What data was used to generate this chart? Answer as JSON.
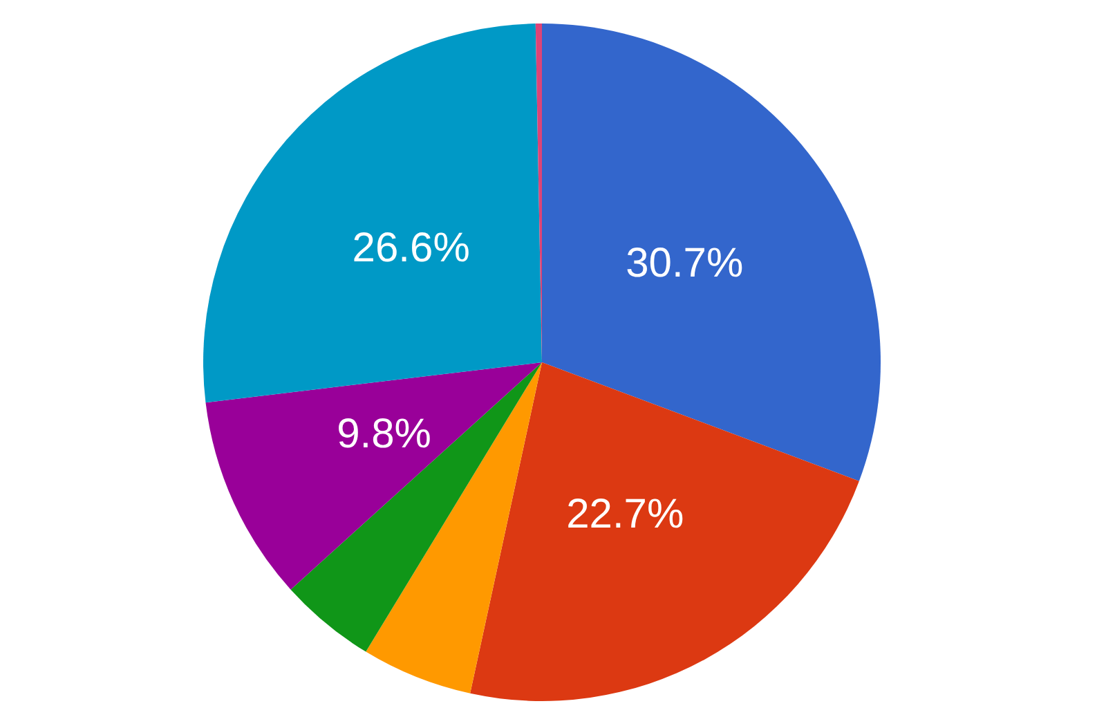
{
  "chart_data": {
    "type": "pie",
    "categories": [
      null,
      null,
      null,
      null,
      null,
      null,
      null
    ],
    "values": [
      30.7,
      22.7,
      5.3,
      4.6,
      9.8,
      26.6,
      0.3
    ],
    "colors": [
      "#3366cc",
      "#dc3912",
      "#ff9900",
      "#109618",
      "#990099",
      "#0099c6",
      "#dd4477"
    ],
    "value_labels": [
      "30.7%",
      "22.7%",
      null,
      null,
      "9.8%",
      "26.6%",
      null
    ]
  }
}
